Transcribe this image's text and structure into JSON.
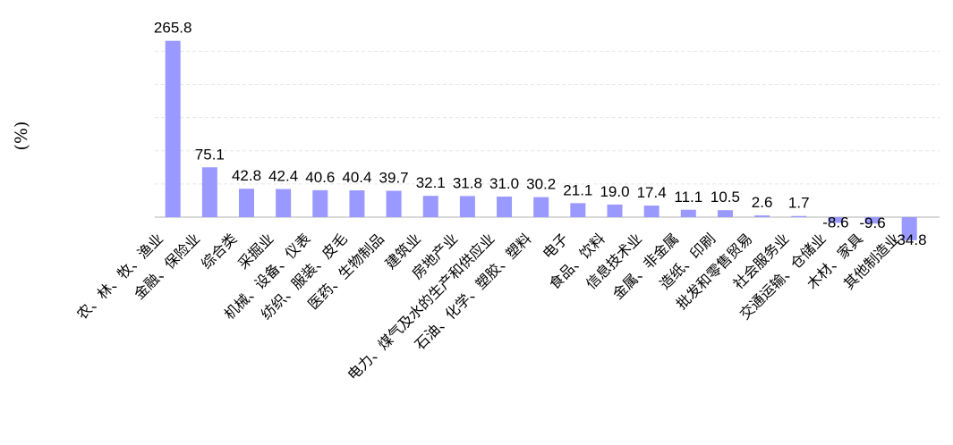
{
  "chart_data": {
    "type": "bar",
    "ylabel": "(%)",
    "ylim": [
      -40,
      280
    ],
    "grid": true,
    "bar_color": "#9999ff",
    "categories": [
      "农、林、牧、渔业",
      "金融、保险业",
      "综合类",
      "采掘业",
      "机械、设备、仪表",
      "纺织、服装、皮毛",
      "医药、生物制品",
      "建筑业",
      "房地产业",
      "电力、煤气及水的生产和供应业",
      "石油、化学、塑胶、塑料",
      "电子",
      "食品、饮料",
      "信息技术业",
      "金属、非金属",
      "造纸、印刷",
      "批发和零售贸易",
      "社会服务业",
      "交通运输、仓储业",
      "木材、家具",
      "其他制造业"
    ],
    "values": [
      265.8,
      75.1,
      42.8,
      42.4,
      40.6,
      40.4,
      39.7,
      32.1,
      31.8,
      31.0,
      30.2,
      21.1,
      19.0,
      17.4,
      11.1,
      10.5,
      2.6,
      1.7,
      -8.6,
      -9.6,
      -34.8
    ],
    "value_labels": [
      "265.8",
      "75.1",
      "42.8",
      "42.4",
      "40.6",
      "40.4",
      "39.7",
      "32.1",
      "31.8",
      "31.0",
      "30.2",
      "21.1",
      "19.0",
      "17.4",
      "11.1",
      "10.5",
      "2.6",
      "1.7",
      "-8.6",
      "-9.6",
      "-34.8"
    ]
  }
}
